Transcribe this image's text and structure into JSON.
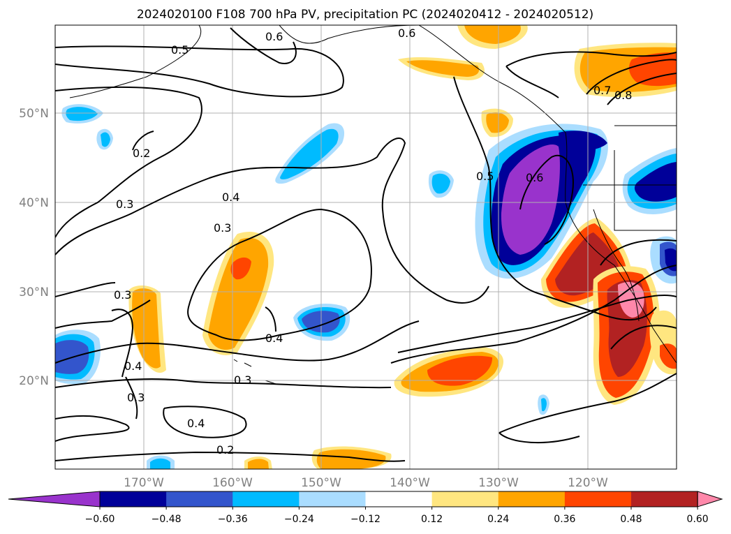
{
  "title": "2024020100 F108 700 hPa PV, precipitation PC (2024020412 - 2024020512)",
  "lon_labels": [
    "170°W",
    "160°W",
    "150°W",
    "140°W",
    "130°W",
    "120°W"
  ],
  "lat_labels": [
    "50°N",
    "40°N",
    "30°N",
    "20°N"
  ],
  "colorbar": {
    "colors": [
      "#9933cc",
      "#000099",
      "#3355cc",
      "#00bbff",
      "#aaddff",
      "#ffffff",
      "#ffe680",
      "#ffa500",
      "#ff4500",
      "#b22222",
      "#ff88aa"
    ],
    "tick_labels": [
      "−0.60",
      "−0.48",
      "−0.36",
      "−0.24",
      "−0.12",
      "0.12",
      "0.24",
      "0.36",
      "0.48",
      "0.60"
    ]
  },
  "contour_labels": [
    "0.5",
    "0.6",
    "0.6",
    "0.2",
    "0.3",
    "0.4",
    "0.3",
    "0.5",
    "0.6",
    "0.3",
    "0.4",
    "0.4",
    "0.3",
    "0.3",
    "0.4",
    "0.2",
    "0.7",
    "0.8"
  ]
}
